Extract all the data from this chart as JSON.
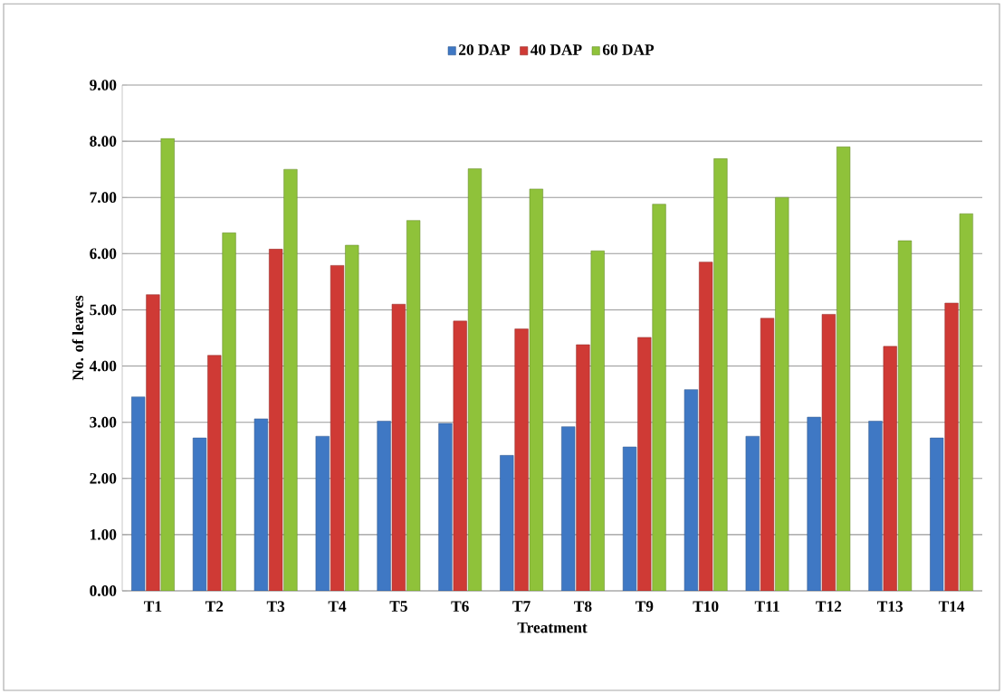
{
  "chart_data": {
    "type": "bar",
    "xlabel": "Treatment",
    "ylabel": "No. of leaves",
    "categories": [
      "T1",
      "T2",
      "T3",
      "T4",
      "T5",
      "T6",
      "T7",
      "T8",
      "T9",
      "T10",
      "T11",
      "T12",
      "T13",
      "T14"
    ],
    "series": [
      {
        "name": "20 DAP",
        "color": "#3f78c4",
        "values": [
          3.45,
          2.72,
          3.06,
          2.75,
          3.02,
          2.98,
          2.41,
          2.92,
          2.56,
          3.58,
          2.75,
          3.09,
          3.02,
          2.72
        ]
      },
      {
        "name": "40 DAP",
        "color": "#cf3a35",
        "values": [
          5.27,
          4.19,
          6.08,
          5.79,
          5.1,
          4.8,
          4.66,
          4.38,
          4.51,
          5.85,
          4.85,
          4.92,
          4.35,
          5.12
        ]
      },
      {
        "name": "60 DAP",
        "color": "#8fc23a",
        "values": [
          8.05,
          6.37,
          7.5,
          6.15,
          6.59,
          7.51,
          7.15,
          6.05,
          6.88,
          7.69,
          7.0,
          7.9,
          6.23,
          6.71
        ]
      }
    ],
    "ylim": [
      0,
      9
    ],
    "yticks": [
      {
        "value": 0,
        "label": "0.00"
      },
      {
        "value": 1,
        "label": "1.00"
      },
      {
        "value": 2,
        "label": "2.00"
      },
      {
        "value": 3,
        "label": "3.00"
      },
      {
        "value": 4,
        "label": "4.00"
      },
      {
        "value": 5,
        "label": "5.00"
      },
      {
        "value": 6,
        "label": "6.00"
      },
      {
        "value": 7,
        "label": "7.00"
      },
      {
        "value": 8,
        "label": "8.00"
      },
      {
        "value": 9,
        "label": "9.00"
      }
    ],
    "grid": "y",
    "legend": "top"
  }
}
